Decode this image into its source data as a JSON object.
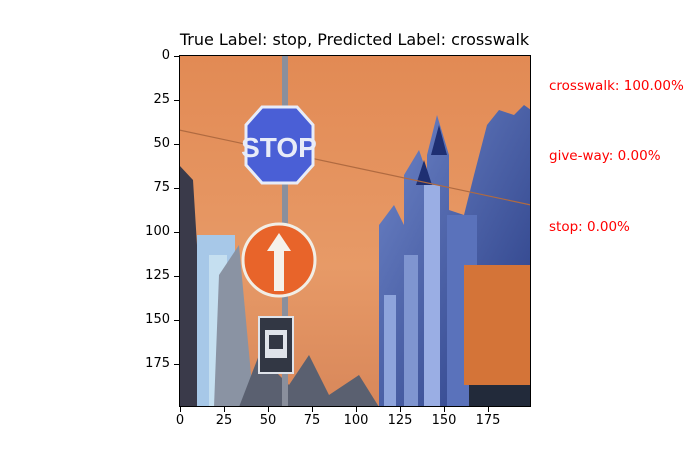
{
  "figure": {
    "title": "True Label: stop, Predicted Label: crosswalk",
    "x_ticks": [
      "0",
      "25",
      "50",
      "75",
      "100",
      "125",
      "150",
      "175"
    ],
    "y_ticks": [
      "0",
      "25",
      "50",
      "75",
      "100",
      "125",
      "150",
      "175"
    ],
    "predictions": [
      {
        "label": "crosswalk: 100.00%"
      },
      {
        "label": "give-way: 0.00%"
      },
      {
        "label": "stop: 0.00%"
      }
    ],
    "prediction_color": "#ff0000",
    "image": {
      "description_icon": "photo",
      "sky_color": "#e8935a",
      "sign_top_text": "STOP",
      "sign_top_color": "#4a5fd6",
      "sign_bottom_color": "#e8642a"
    }
  }
}
